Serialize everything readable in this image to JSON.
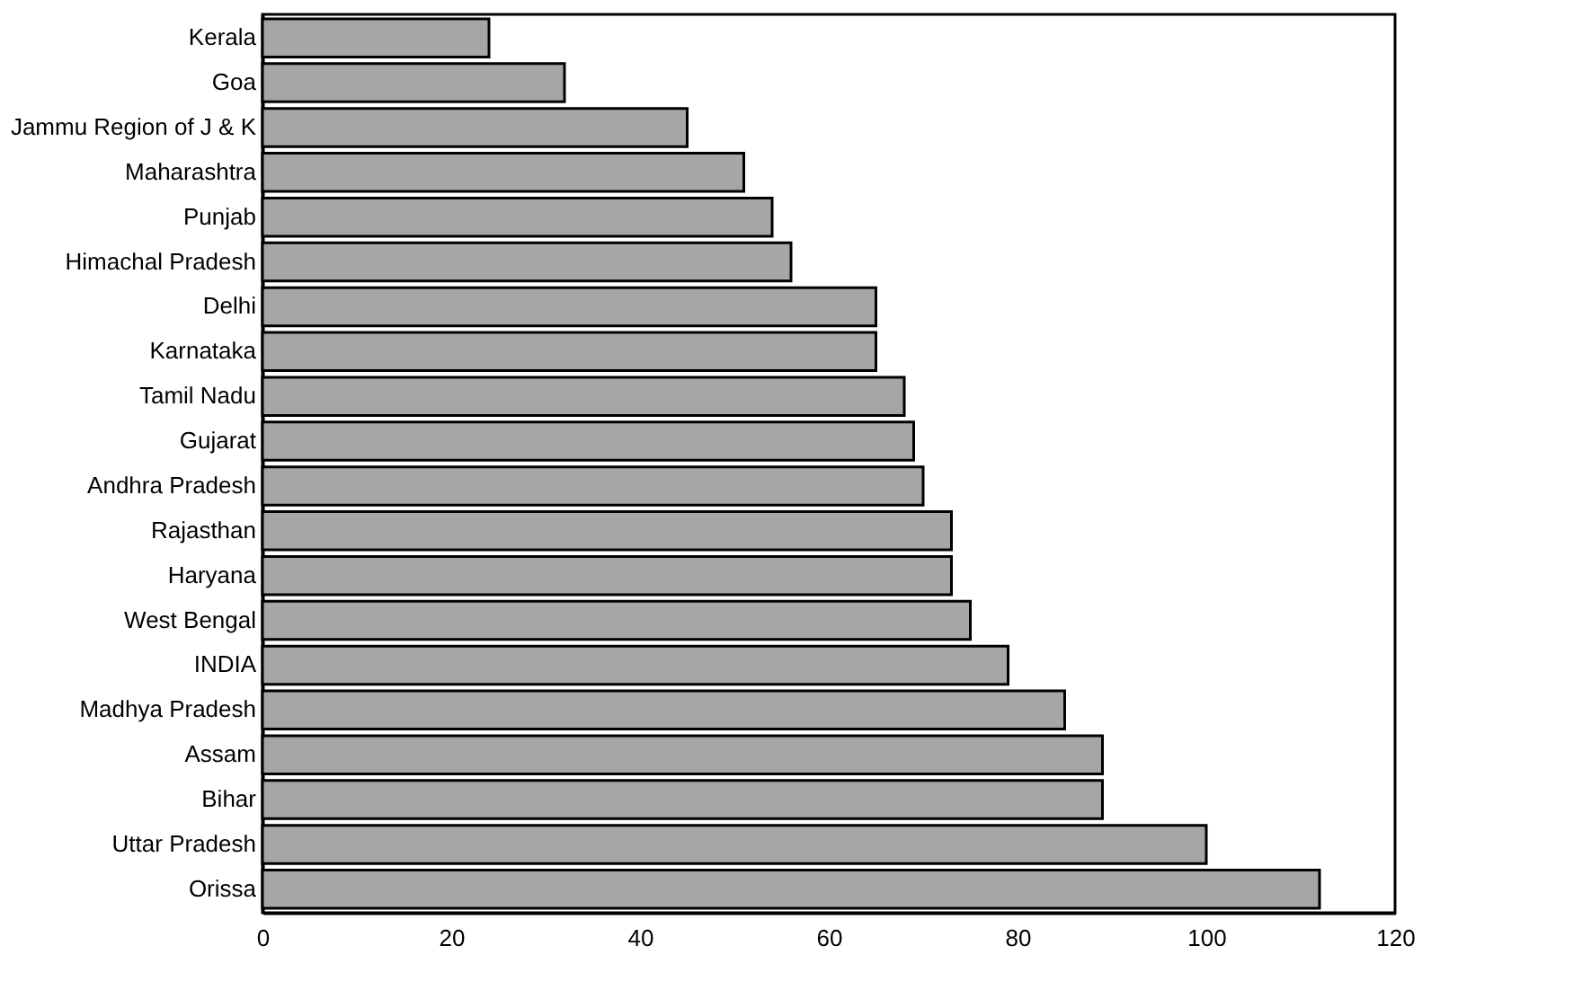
{
  "chart_data": {
    "type": "bar",
    "orientation": "horizontal",
    "categories": [
      "Kerala",
      "Goa",
      "Jammu Region of J & K",
      "Maharashtra",
      "Punjab",
      "Himachal Pradesh",
      "Delhi",
      "Karnataka",
      "Tamil Nadu",
      "Gujarat",
      "Andhra Pradesh",
      "Rajasthan",
      "Haryana",
      "West Bengal",
      "INDIA",
      "Madhya Pradesh",
      "Assam",
      "Bihar",
      "Uttar Pradesh",
      "Orissa"
    ],
    "values": [
      24,
      32,
      45,
      51,
      54,
      56,
      65,
      65,
      68,
      69,
      70,
      73,
      73,
      75,
      79,
      85,
      89,
      89,
      100,
      112
    ],
    "color": "#a6a6a6",
    "xlim": [
      0,
      120
    ],
    "xticks": [
      0,
      20,
      40,
      60,
      80,
      100,
      120
    ],
    "grid": false
  }
}
